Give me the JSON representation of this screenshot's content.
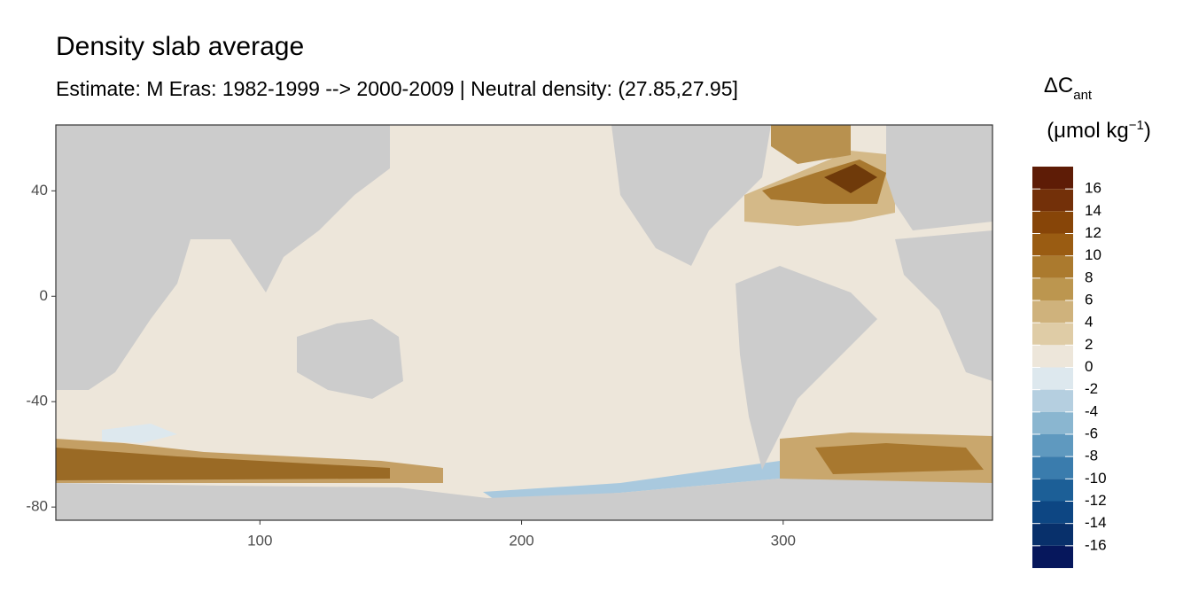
{
  "chart_data": {
    "type": "raster-map",
    "title": "Density slab average",
    "subtitle": "Estimate: M Eras: 1982-1999 --> 2000-2009 | Neutral density: (27.85,27.95]",
    "xlim": [
      22,
      380
    ],
    "xticks": [
      100,
      200,
      300
    ],
    "ylim": [
      -85,
      65
    ],
    "yticks": [
      40,
      0,
      -40,
      -80
    ],
    "land_color": "#cccccc",
    "legend": {
      "title": {
        "main": "ΔC",
        "subscript": "ant",
        "unit": "(μmol kg",
        "superscript": "−1",
        "unit_close": ")"
      },
      "bins": [
        18,
        16,
        14,
        12,
        10,
        8,
        6,
        4,
        2,
        0,
        -2,
        -4,
        -6,
        -8,
        -10,
        -12,
        -14,
        -16,
        -18
      ],
      "colors": [
        "#5e1c06",
        "#733009",
        "#874508",
        "#9a5c12",
        "#ab7a2e",
        "#bc964f",
        "#cfb27c",
        "#dfcca6",
        "#ede6da",
        "#dde8ee",
        "#b5cfe0",
        "#8ab6d0",
        "#5f99bf",
        "#3a7cad",
        "#1c5f97",
        "#0d4683",
        "#08306b",
        "#06175c"
      ],
      "ticks": [
        16,
        14,
        12,
        10,
        8,
        6,
        4,
        2,
        0,
        -2,
        -4,
        -6,
        -8,
        -10,
        -12,
        -14,
        -16
      ]
    }
  }
}
